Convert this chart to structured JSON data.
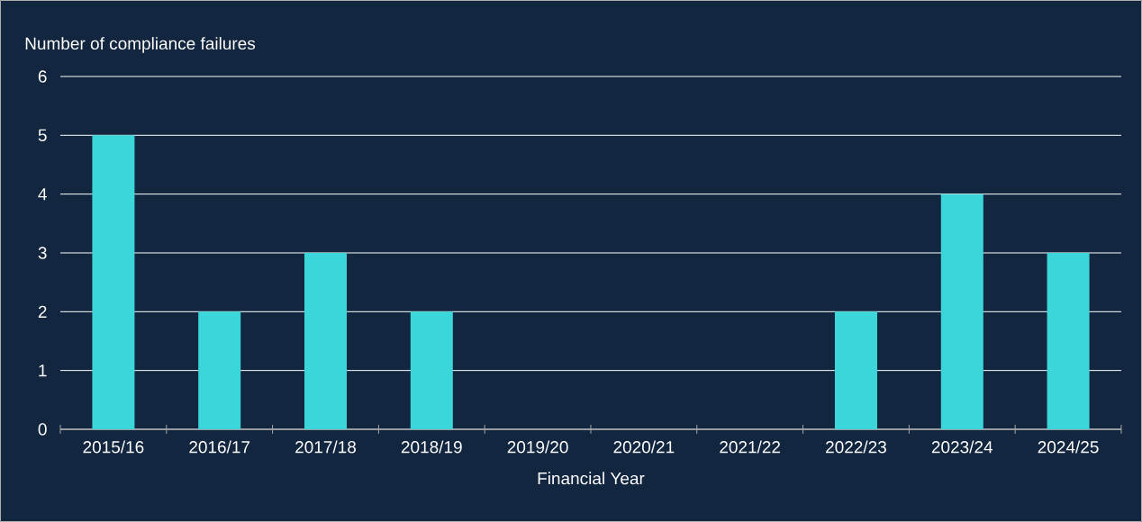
{
  "chart_data": {
    "type": "bar",
    "ylabel": "Number of compliance failures",
    "xlabel": "Financial Year",
    "categories": [
      "2015/16",
      "2016/17",
      "2017/18",
      "2018/19",
      "2019/20",
      "2020/21",
      "2021/22",
      "2022/23",
      "2023/24",
      "2024/25"
    ],
    "values": [
      5,
      2,
      3,
      2,
      0,
      0,
      0,
      2,
      4,
      3
    ],
    "color": "#3ad6da",
    "ylim": [
      0,
      6
    ],
    "yticks": [
      0,
      1,
      2,
      3,
      4,
      5,
      6
    ],
    "grid": "y"
  }
}
